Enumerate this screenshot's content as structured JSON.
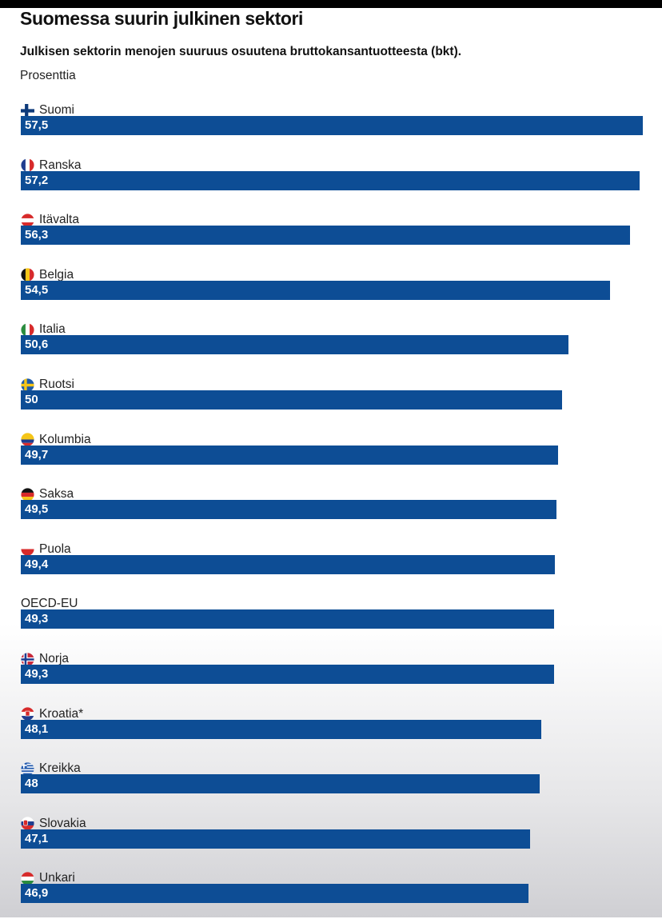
{
  "title": "Suomessa suurin julkinen sektori",
  "subtitle": "Julkisen sektorin menojen suuruus osuutena bruttokansantuotteesta (bkt).",
  "unit": "Prosenttia",
  "colors": {
    "bar": "#0d4d95",
    "bar_text": "#ffffff"
  },
  "chart_data": {
    "type": "bar",
    "orientation": "horizontal",
    "categories": [
      "Suomi",
      "Ranska",
      "Itävalta",
      "Belgia",
      "Italia",
      "Ruotsi",
      "Kolumbia",
      "Saksa",
      "Puola",
      "OECD-EU",
      "Norja",
      "Kroatia*",
      "Kreikka",
      "Slovakia",
      "Unkari"
    ],
    "values": [
      57.5,
      57.2,
      56.3,
      54.5,
      50.6,
      50,
      49.7,
      49.5,
      49.4,
      49.3,
      49.3,
      48.1,
      48,
      47.1,
      46.9
    ],
    "value_labels": [
      "57,5",
      "57,2",
      "56,3",
      "54,5",
      "50,6",
      "50",
      "49,7",
      "49,5",
      "49,4",
      "49,3",
      "49,3",
      "48,1",
      "48",
      "47,1",
      "46,9"
    ],
    "flags": [
      "finland-flag-icon",
      "france-flag-icon",
      "austria-flag-icon",
      "belgium-flag-icon",
      "italy-flag-icon",
      "sweden-flag-icon",
      "colombia-flag-icon",
      "germany-flag-icon",
      "poland-flag-icon",
      "",
      "norway-flag-icon",
      "croatia-flag-icon",
      "greece-flag-icon",
      "slovakia-flag-icon",
      "hungary-flag-icon"
    ],
    "xlim": [
      0,
      57.5
    ],
    "grid": false,
    "legend": "none"
  }
}
